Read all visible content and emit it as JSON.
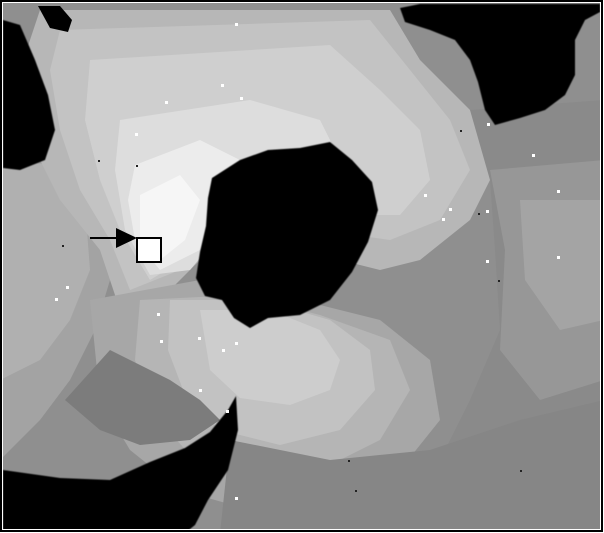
{
  "image": {
    "kind": "grayscale depth-contour rendering",
    "colors": {
      "background": "#ffffff",
      "frame": "#000000",
      "void": "#000000",
      "marker_fill": "#ffffff",
      "arrow": "#000000"
    },
    "icons": {
      "arrow": "arrow-right-icon",
      "marker": "square-marker-icon"
    }
  }
}
